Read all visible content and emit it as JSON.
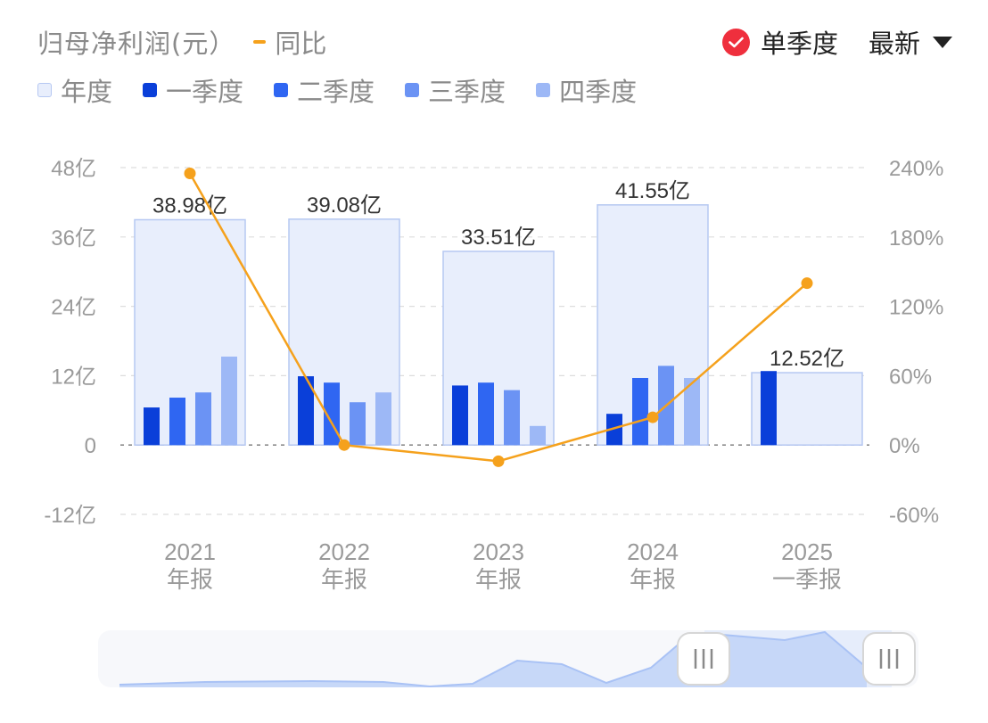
{
  "header": {
    "title": "归母净利润(元）",
    "yoy_label": "同比",
    "mode_label": "单季度",
    "latest_label": "最新"
  },
  "legend": [
    {
      "label": "年度",
      "color": "#e8eefc"
    },
    {
      "label": "一季度",
      "color": "#0a3fd9"
    },
    {
      "label": "二季度",
      "color": "#2f66f2"
    },
    {
      "label": "三季度",
      "color": "#6b93f4"
    },
    {
      "label": "四季度",
      "color": "#9db8f6"
    }
  ],
  "colors": {
    "annual_fill": "#e8eefc",
    "annual_stroke": "#b6c8f2",
    "yoy_line": "#f5a11c",
    "grid": "#dddddd",
    "axis_text": "#9a9a9a",
    "brand_check": "#ef2f3d"
  },
  "chart_data": {
    "type": "bar",
    "categories": [
      "2021年报",
      "2022年报",
      "2023年报",
      "2024年报",
      "2025一季报"
    ],
    "category_labels": [
      {
        "year": "2021",
        "period": "年报"
      },
      {
        "year": "2022",
        "period": "年报"
      },
      {
        "year": "2023",
        "period": "年报"
      },
      {
        "year": "2024",
        "period": "年报"
      },
      {
        "year": "2025",
        "period": "一季报"
      }
    ],
    "series": [
      {
        "name": "年度",
        "values": [
          38.98,
          39.08,
          33.51,
          41.55,
          12.52
        ],
        "labels": [
          "38.98亿",
          "39.08亿",
          "33.51亿",
          "41.55亿",
          "12.52亿"
        ]
      },
      {
        "name": "一季度",
        "values": [
          6.5,
          11.9,
          10.3,
          5.4,
          12.8
        ]
      },
      {
        "name": "二季度",
        "values": [
          8.2,
          10.8,
          10.8,
          11.6,
          null
        ]
      },
      {
        "name": "三季度",
        "values": [
          9.1,
          7.4,
          9.5,
          13.7,
          null
        ]
      },
      {
        "name": "四季度",
        "values": [
          15.3,
          9.1,
          3.3,
          11.6,
          null
        ]
      },
      {
        "name": "同比",
        "axis": "right",
        "values": [
          235,
          0,
          -14,
          24,
          140
        ]
      }
    ],
    "ylim": [
      -12,
      48
    ],
    "y_ticks": [
      -12,
      0,
      12,
      24,
      36,
      48
    ],
    "y_tick_labels": [
      "-12亿",
      "0",
      "12亿",
      "24亿",
      "36亿",
      "48亿"
    ],
    "y2lim": [
      -60,
      240
    ],
    "y2_ticks": [
      -60,
      0,
      60,
      120,
      180,
      240
    ],
    "y2_tick_labels": [
      "-60%",
      "0%",
      "60%",
      "120%",
      "180%",
      "240%"
    ],
    "grid": true,
    "legend_position": "top-left"
  }
}
